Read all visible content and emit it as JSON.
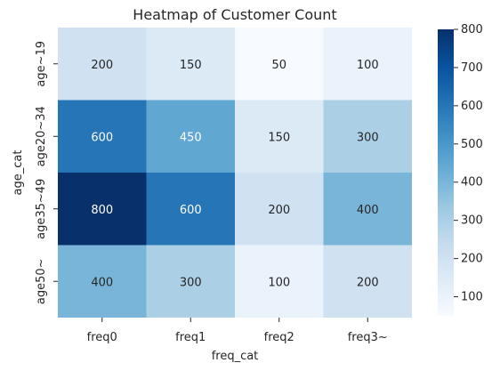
{
  "chart_data": {
    "type": "heatmap",
    "title": "Heatmap of Customer Count",
    "xlabel": "freq_cat",
    "ylabel": "age_cat",
    "x_categories": [
      "freq0",
      "freq1",
      "freq2",
      "freq3~"
    ],
    "y_categories": [
      "age~19",
      "age20~34",
      "age35~49",
      "age50~"
    ],
    "values": [
      [
        200,
        150,
        50,
        100
      ],
      [
        600,
        450,
        150,
        300
      ],
      [
        800,
        600,
        200,
        400
      ],
      [
        400,
        300,
        100,
        200
      ]
    ],
    "colorbar": {
      "vmin": 50,
      "vmax": 800,
      "ticks": [
        100,
        200,
        300,
        400,
        500,
        600,
        700,
        800
      ],
      "colormap": "Blues"
    },
    "annotations": true,
    "grid": false,
    "legend_placement": "right"
  }
}
